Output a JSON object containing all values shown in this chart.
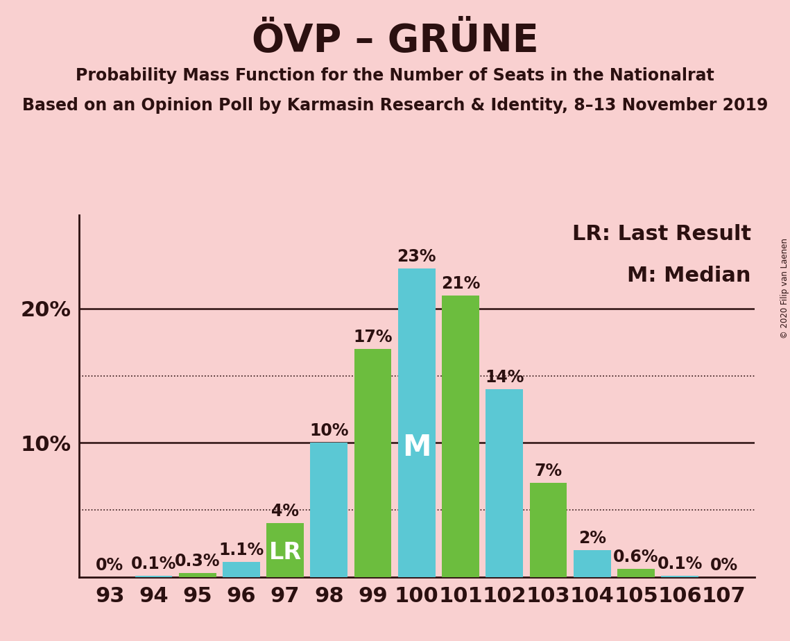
{
  "title": "ÖVP – GRÜNE",
  "subtitle1": "Probability Mass Function for the Number of Seats in the Nationalrat",
  "subtitle2": "Based on an Opinion Poll by Karmasin Research & Identity, 8–13 November 2019",
  "copyright": "© 2020 Filip van Laenen",
  "seats": [
    93,
    94,
    95,
    96,
    97,
    98,
    99,
    100,
    101,
    102,
    103,
    104,
    105,
    106,
    107
  ],
  "values": [
    0.0,
    0.1,
    0.3,
    1.1,
    4.0,
    10.0,
    17.0,
    23.0,
    21.0,
    14.0,
    7.0,
    2.0,
    0.6,
    0.1,
    0.0
  ],
  "labels": [
    "0%",
    "0.1%",
    "0.3%",
    "1.1%",
    "4%",
    "10%",
    "17%",
    "23%",
    "21%",
    "14%",
    "7%",
    "2%",
    "0.6%",
    "0.1%",
    "0%"
  ],
  "colors": [
    "#5bc8d4",
    "#5bc8d4",
    "#6cbd3e",
    "#5bc8d4",
    "#6cbd3e",
    "#5bc8d4",
    "#6cbd3e",
    "#5bc8d4",
    "#6cbd3e",
    "#5bc8d4",
    "#6cbd3e",
    "#5bc8d4",
    "#6cbd3e",
    "#5bc8d4",
    "#6cbd3e"
  ],
  "lr_seat": 97,
  "median_seat": 100,
  "lr_label": "LR",
  "median_label": "M",
  "legend_lr": "LR: Last Result",
  "legend_m": "M: Median",
  "background_color": "#f9d0d0",
  "solid_line_y": [
    10.0,
    20.0
  ],
  "dotted_line_y": [
    5.0,
    15.0
  ],
  "ylim": [
    0,
    27
  ],
  "ytick_positions": [
    10,
    20
  ],
  "ytick_labels": [
    "10%",
    "20%"
  ],
  "title_fontsize": 40,
  "subtitle_fontsize": 17,
  "tick_fontsize": 22,
  "bar_label_fontsize": 17,
  "inbar_lr_fontsize": 24,
  "inbar_m_fontsize": 30,
  "legend_fontsize": 22,
  "text_color": "#2b1010",
  "cyan_color": "#5bc8d4",
  "green_color": "#6cbd3e"
}
